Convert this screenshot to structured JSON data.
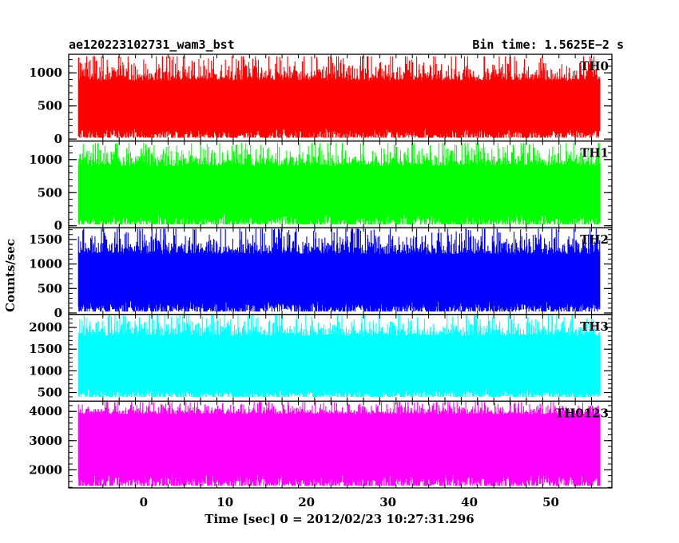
{
  "chart_data": {
    "type": "line",
    "title_left": "ae120223102731_wam3_bst",
    "title_right": "Bin time: 1.5625E−2 s",
    "xlabel": "Time [sec] 0 = 2012/02/23 10:27:31.296",
    "ylabel": "Counts/sec",
    "xlim": [
      -9.2,
      57.5
    ],
    "x_ticks": [
      "0",
      "10",
      "20",
      "30",
      "40",
      "50"
    ],
    "x_tick_values": [
      0,
      10,
      20,
      30,
      40,
      50
    ],
    "data_range": [
      -8.0,
      56.0
    ],
    "grid": false,
    "panels": [
      {
        "name": "TH0",
        "color": "#ff0000",
        "ylim": [
          -30,
          1280
        ],
        "y_ticks": [
          "0",
          "500",
          "1000"
        ],
        "y_tick_values": [
          0,
          500,
          1000
        ],
        "band": [
          180,
          880
        ],
        "range": [
          20,
          1250
        ]
      },
      {
        "name": "TH1",
        "color": "#00ff00",
        "ylim": [
          -30,
          1280
        ],
        "y_ticks": [
          "0",
          "500",
          "1000"
        ],
        "y_tick_values": [
          0,
          500,
          1000
        ],
        "band": [
          200,
          900
        ],
        "range": [
          20,
          1250
        ]
      },
      {
        "name": "TH2",
        "color": "#0000ff",
        "ylim": [
          -30,
          1740
        ],
        "y_ticks": [
          "0",
          "500",
          "1000",
          "1500"
        ],
        "y_tick_values": [
          0,
          500,
          1000,
          1500
        ],
        "band": [
          250,
          1200
        ],
        "range": [
          30,
          1720
        ]
      },
      {
        "name": "TH3",
        "color": "#00ffff",
        "ylim": [
          300,
          2300
        ],
        "y_ticks": [
          "500",
          "1000",
          "1500",
          "2000"
        ],
        "y_tick_values": [
          500,
          1000,
          1500,
          2000
        ],
        "band": [
          600,
          1800
        ],
        "range": [
          400,
          2280
        ]
      },
      {
        "name": "TH0123",
        "color": "#ff00ff",
        "ylim": [
          1380,
          4350
        ],
        "y_ticks": [
          "2000",
          "3000",
          "4000"
        ],
        "y_tick_values": [
          2000,
          3000,
          4000
        ],
        "band": [
          1900,
          3900
        ],
        "range": [
          1450,
          4320
        ]
      }
    ]
  }
}
